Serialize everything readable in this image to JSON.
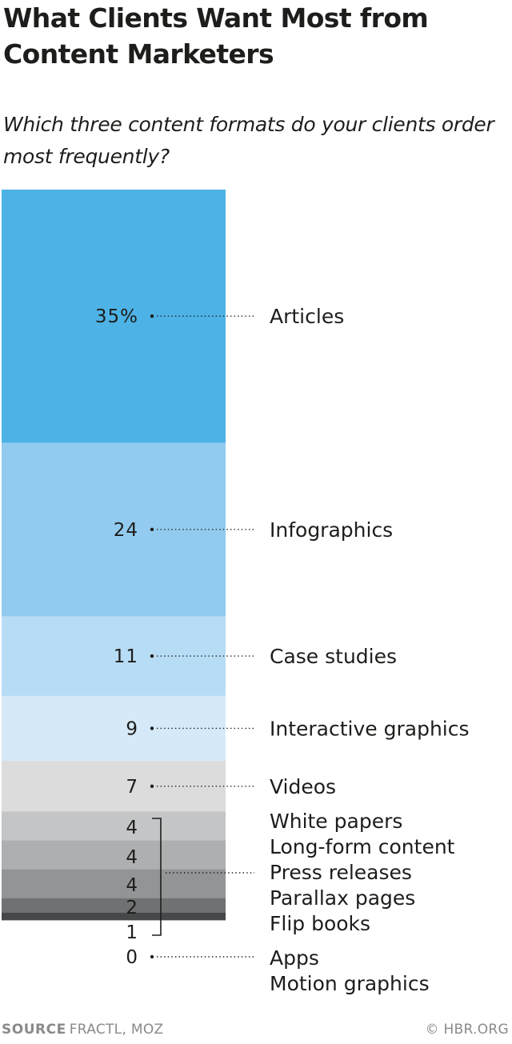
{
  "title": "What Clients Want Most from Content Marketers",
  "subtitle": "Which three content formats do your clients order most frequently?",
  "chart_data": {
    "type": "bar",
    "stacked": true,
    "orientation": "vertical",
    "unit": "%",
    "segments": [
      {
        "label": "Articles",
        "value": 35,
        "display": "35%",
        "color": "#4db3e6"
      },
      {
        "label": "Infographics",
        "value": 24,
        "display": "24",
        "color": "#92cbef"
      },
      {
        "label": "Case studies",
        "value": 11,
        "display": "11",
        "color": "#b7dcf5"
      },
      {
        "label": "Interactive graphics",
        "value": 9,
        "display": "9",
        "color": "#d6e9f8"
      },
      {
        "label": "Videos",
        "value": 7,
        "display": "7",
        "color": "#dcdcdc"
      },
      {
        "label": "White papers",
        "value": 4,
        "display": "4",
        "color": "#c4c5c7"
      },
      {
        "label": "Long-form content",
        "value": 4,
        "display": "4",
        "color": "#aeafb1"
      },
      {
        "label": "Press releases",
        "value": 4,
        "display": "4",
        "color": "#939496"
      },
      {
        "label": "Parallax pages",
        "value": 2,
        "display": "2",
        "color": "#707173"
      },
      {
        "label": "Flip books",
        "value": 1,
        "display": "1",
        "color": "#47484a"
      },
      {
        "label": "Apps",
        "value": 0,
        "display": "0",
        "color": "#333333"
      },
      {
        "label": "Motion graphics",
        "value": 0,
        "display": "0",
        "color": "#333333"
      }
    ]
  },
  "footer": {
    "source_label": "SOURCE",
    "source_text": "FRACTL, MOZ",
    "credit": "© HBR.ORG"
  }
}
